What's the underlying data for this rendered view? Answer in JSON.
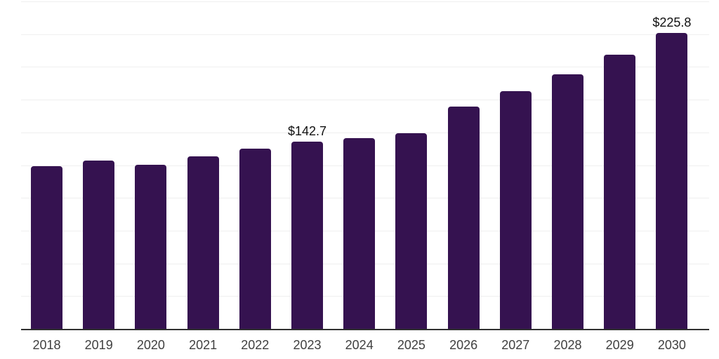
{
  "chart_data": {
    "type": "bar",
    "title": "",
    "categories": [
      "2018",
      "2019",
      "2020",
      "2021",
      "2022",
      "2023",
      "2024",
      "2025",
      "2026",
      "2027",
      "2028",
      "2029",
      "2030"
    ],
    "values": [
      124.0,
      128.5,
      125.2,
      131.5,
      137.5,
      142.7,
      145.7,
      149.5,
      169.8,
      181.6,
      194.2,
      209.2,
      225.8
    ],
    "data_labels": [
      {
        "category": "2023",
        "text": "$142.7"
      },
      {
        "category": "2030",
        "text": "$225.8"
      }
    ],
    "xlabel": "",
    "ylabel": "",
    "ylim": [
      0,
      250
    ],
    "gridline_step": 25,
    "grid": "horizontal",
    "y_tick_labels_visible": false,
    "legend": "none",
    "colors": {
      "bar": "#351250",
      "gridline": "#efefef",
      "axis_line": "#303030",
      "tick_label": "#404040",
      "data_label": "#111111",
      "background": "#ffffff"
    }
  }
}
